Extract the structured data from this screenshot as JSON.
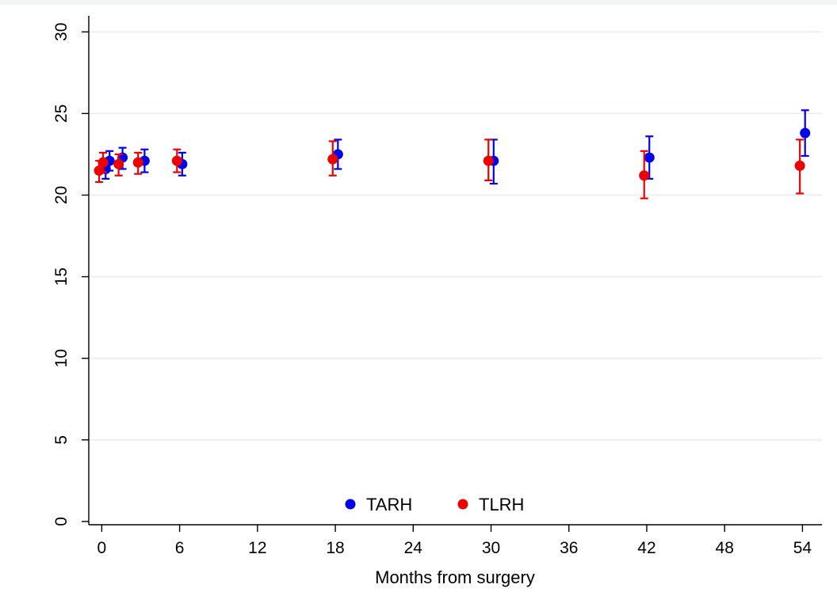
{
  "chart_data": {
    "type": "scatter",
    "xlabel": "Months from surgery",
    "ylabel": "",
    "xlim": [
      -1,
      55.5
    ],
    "ylim": [
      -0.2,
      30.5
    ],
    "x_ticks": [
      0,
      6,
      12,
      18,
      24,
      30,
      36,
      42,
      48,
      54
    ],
    "y_ticks": [
      0,
      5,
      10,
      15,
      20,
      25,
      30
    ],
    "grid": "horizontal",
    "legend_position": "bottom-center",
    "error_bars": true,
    "series": [
      {
        "name": "TARH",
        "color": "#0000ee",
        "points": [
          {
            "x": 0.3,
            "y": 21.6,
            "lo": 21.0,
            "hi": 22.2
          },
          {
            "x": 0.6,
            "y": 22.1,
            "lo": 21.5,
            "hi": 22.7
          },
          {
            "x": 1.6,
            "y": 22.3,
            "lo": 21.6,
            "hi": 22.9
          },
          {
            "x": 3.3,
            "y": 22.1,
            "lo": 21.4,
            "hi": 22.8
          },
          {
            "x": 6.2,
            "y": 21.9,
            "lo": 21.2,
            "hi": 22.6
          },
          {
            "x": 18.2,
            "y": 22.5,
            "lo": 21.6,
            "hi": 23.4
          },
          {
            "x": 30.2,
            "y": 22.1,
            "lo": 20.7,
            "hi": 23.4
          },
          {
            "x": 42.2,
            "y": 22.3,
            "lo": 21.0,
            "hi": 23.6
          },
          {
            "x": 54.2,
            "y": 23.8,
            "lo": 22.4,
            "hi": 25.2
          }
        ]
      },
      {
        "name": "TLRH",
        "color": "#ee0000",
        "points": [
          {
            "x": -0.2,
            "y": 21.5,
            "lo": 20.8,
            "hi": 22.1
          },
          {
            "x": 0.1,
            "y": 22.0,
            "lo": 21.4,
            "hi": 22.6
          },
          {
            "x": 1.3,
            "y": 21.9,
            "lo": 21.2,
            "hi": 22.5
          },
          {
            "x": 2.8,
            "y": 22.0,
            "lo": 21.3,
            "hi": 22.6
          },
          {
            "x": 5.8,
            "y": 22.1,
            "lo": 21.4,
            "hi": 22.8
          },
          {
            "x": 17.8,
            "y": 22.2,
            "lo": 21.2,
            "hi": 23.3
          },
          {
            "x": 29.8,
            "y": 22.1,
            "lo": 20.9,
            "hi": 23.4
          },
          {
            "x": 41.8,
            "y": 21.2,
            "lo": 19.8,
            "hi": 22.7
          },
          {
            "x": 53.8,
            "y": 21.8,
            "lo": 20.1,
            "hi": 23.4
          }
        ]
      }
    ]
  }
}
